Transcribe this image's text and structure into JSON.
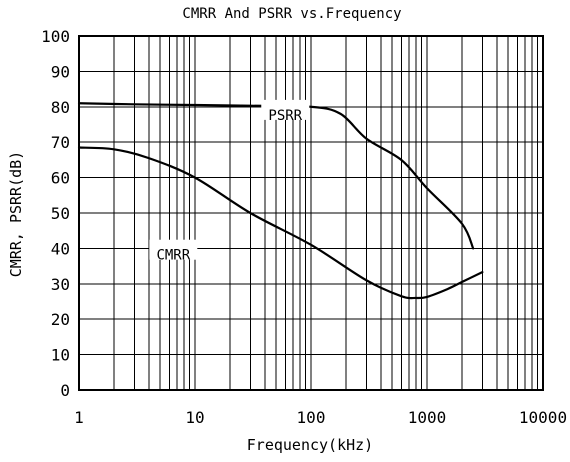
{
  "chart_data": {
    "type": "line",
    "title": "CMRR And PSRR vs.Frequency",
    "xlabel": "Frequency(kHz)",
    "ylabel": "CMRR, PSRR(dB)",
    "x_scale": "log",
    "xlim": [
      1,
      10000
    ],
    "ylim": [
      0,
      100
    ],
    "x_ticks": [
      1,
      10,
      100,
      1000,
      10000
    ],
    "x_tick_labels": [
      "1",
      "10",
      "100",
      "1000",
      "10000"
    ],
    "y_ticks": [
      0,
      10,
      20,
      30,
      40,
      50,
      60,
      70,
      80,
      90,
      100
    ],
    "y_tick_labels": [
      "0",
      "10",
      "20",
      "30",
      "40",
      "50",
      "60",
      "70",
      "80",
      "90",
      "100"
    ],
    "grid": true,
    "legend": "none",
    "series": [
      {
        "name": "PSRR",
        "x": [
          1,
          3,
          10,
          30,
          100,
          180,
          300,
          600,
          1000,
          2000,
          2500
        ],
        "y": [
          81,
          80.7,
          80.5,
          80.3,
          80,
          78,
          71,
          65,
          57,
          47,
          40
        ]
      },
      {
        "name": "CMRR",
        "x": [
          1,
          2,
          4,
          10,
          30,
          100,
          300,
          600,
          800,
          1000,
          1500,
          2000,
          3000
        ],
        "y": [
          68.5,
          68,
          65.5,
          60,
          50,
          41,
          31,
          26.5,
          26,
          26.3,
          28.5,
          30.5,
          33.3
        ]
      }
    ],
    "annotations": [
      {
        "text": "PSRR",
        "series": "PSRR"
      },
      {
        "text": "CMRR",
        "series": "CMRR"
      }
    ]
  }
}
